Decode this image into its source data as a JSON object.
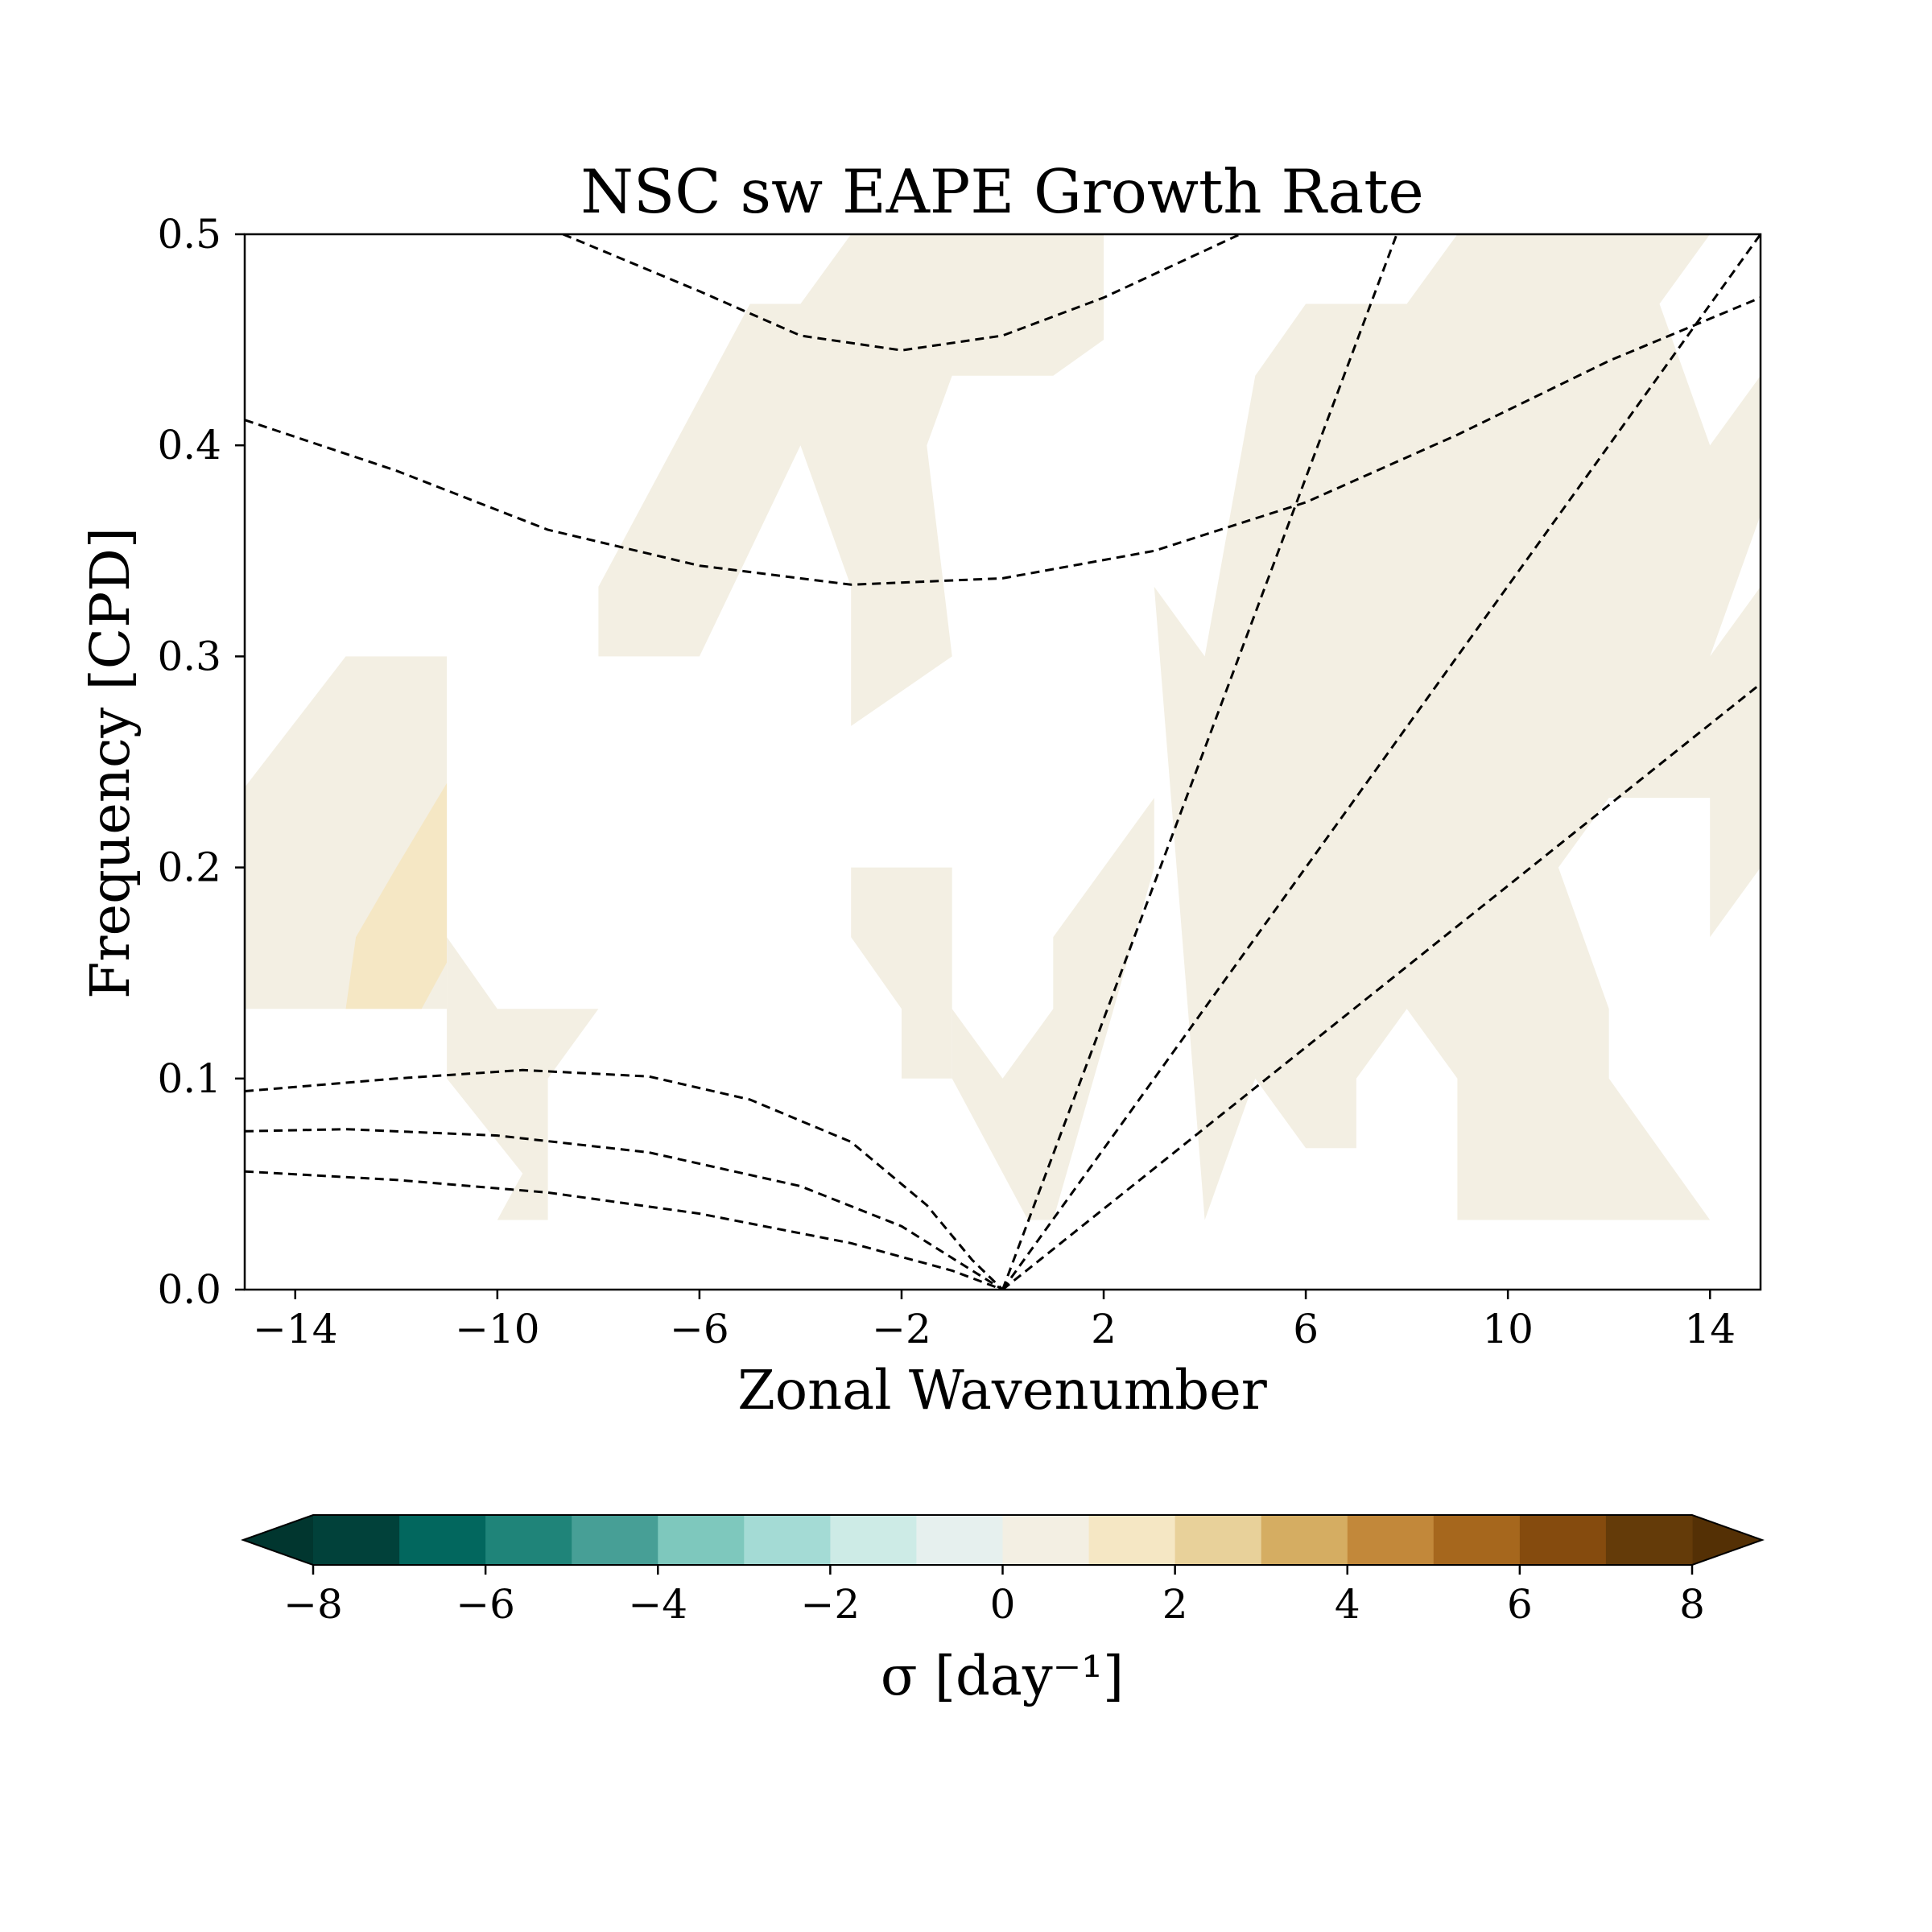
{
  "chart_data": {
    "type": "heatmap",
    "title": "NSC sw EAPE Growth Rate",
    "xlabel": "Zonal Wavenumber",
    "ylabel": "Frequency [CPD]",
    "xlim": [
      -15,
      15
    ],
    "ylim": [
      0,
      0.5
    ],
    "x_ticks": [
      "−14",
      "−10",
      "−6",
      "−2",
      "2",
      "6",
      "10",
      "14"
    ],
    "x_tick_values": [
      -14,
      -10,
      -6,
      -2,
      2,
      6,
      10,
      14
    ],
    "y_ticks": [
      "0.0",
      "0.1",
      "0.2",
      "0.3",
      "0.4",
      "0.5"
    ],
    "y_tick_values": [
      0,
      0.1,
      0.2,
      0.3,
      0.4,
      0.5
    ],
    "filled_contour_regions": [
      {
        "level": "0 to 1",
        "polygon": [
          [
            -15,
            0.133
          ],
          [
            -15,
            0.238
          ],
          [
            -13,
            0.3
          ],
          [
            -11,
            0.3
          ],
          [
            -11,
            0.133
          ]
        ]
      },
      {
        "level": "1 to 2",
        "polygon": [
          [
            -13,
            0.133
          ],
          [
            -12.8,
            0.167
          ],
          [
            -12,
            0.2
          ],
          [
            -11,
            0.24
          ],
          [
            -11,
            0.155
          ],
          [
            -11.5,
            0.133
          ]
        ]
      },
      {
        "level": "0 to 1",
        "polygon": [
          [
            -11,
            0.167
          ],
          [
            -10,
            0.133
          ],
          [
            -8,
            0.133
          ],
          [
            -9,
            0.1
          ],
          [
            -9,
            0.033
          ],
          [
            -10,
            0.033
          ],
          [
            -9.5,
            0.055
          ],
          [
            -11,
            0.1
          ]
        ]
      },
      {
        "level": "0 to 1",
        "polygon": [
          [
            -8,
            0.3
          ],
          [
            -8,
            0.333
          ],
          [
            -5,
            0.467
          ],
          [
            -4,
            0.467
          ],
          [
            -3,
            0.5
          ],
          [
            2,
            0.5
          ],
          [
            2,
            0.45
          ],
          [
            1,
            0.433
          ],
          [
            0,
            0.433
          ],
          [
            -1,
            0.433
          ],
          [
            -1.5,
            0.4
          ],
          [
            -1,
            0.3
          ],
          [
            -3,
            0.267
          ],
          [
            -3,
            0.333
          ],
          [
            -4,
            0.4
          ],
          [
            -6,
            0.3
          ]
        ]
      },
      {
        "level": "0 to 1",
        "polygon": [
          [
            -3,
            0.2
          ],
          [
            -3,
            0.167
          ],
          [
            -2,
            0.133
          ],
          [
            -2,
            0.1
          ],
          [
            -1,
            0.1
          ],
          [
            -1,
            0.2
          ]
        ]
      },
      {
        "level": "0 to 1",
        "polygon": [
          [
            -1,
            0.133
          ],
          [
            0,
            0.1
          ],
          [
            1,
            0.133
          ],
          [
            1,
            0.167
          ],
          [
            3,
            0.233
          ],
          [
            3,
            0.2
          ],
          [
            1,
            0.033
          ],
          [
            0.5,
            0.033
          ],
          [
            -1,
            0.1
          ]
        ]
      },
      {
        "level": "0 to 1",
        "polygon": [
          [
            4,
            0.033
          ],
          [
            3,
            0.333
          ],
          [
            4,
            0.3
          ],
          [
            5,
            0.433
          ],
          [
            6,
            0.467
          ],
          [
            8,
            0.467
          ],
          [
            9,
            0.5
          ],
          [
            14,
            0.5
          ],
          [
            13,
            0.467
          ],
          [
            14,
            0.4
          ],
          [
            15,
            0.433
          ],
          [
            15,
            0.367
          ],
          [
            14,
            0.3
          ],
          [
            15,
            0.333
          ],
          [
            15,
            0.2
          ],
          [
            14,
            0.167
          ],
          [
            14,
            0.233
          ],
          [
            13,
            0.233
          ],
          [
            12,
            0.233
          ],
          [
            11,
            0.2
          ],
          [
            12,
            0.133
          ],
          [
            12,
            0.1
          ],
          [
            14,
            0.033
          ],
          [
            9,
            0.033
          ],
          [
            9,
            0.1
          ],
          [
            8,
            0.133
          ],
          [
            7,
            0.1
          ],
          [
            7,
            0.067
          ],
          [
            6,
            0.067
          ],
          [
            5,
            0.1
          ]
        ]
      }
    ],
    "overlay_curves_dashed": [
      {
        "points": [
          [
            -8.7,
            0.5
          ],
          [
            -6,
            0.473
          ],
          [
            -4,
            0.452
          ],
          [
            -2,
            0.445
          ],
          [
            0,
            0.452
          ],
          [
            2,
            0.47
          ],
          [
            4.7,
            0.5
          ]
        ]
      },
      {
        "points": [
          [
            -15,
            0.412
          ],
          [
            -12,
            0.388
          ],
          [
            -9,
            0.36
          ],
          [
            -6,
            0.343
          ],
          [
            -3,
            0.334
          ],
          [
            0,
            0.337
          ],
          [
            3,
            0.35
          ],
          [
            6,
            0.373
          ],
          [
            9,
            0.405
          ],
          [
            12,
            0.44
          ],
          [
            15,
            0.47
          ]
        ]
      },
      {
        "points": [
          [
            -15,
            0.094
          ],
          [
            -12,
            0.1
          ],
          [
            -9.5,
            0.104
          ],
          [
            -7,
            0.101
          ],
          [
            -5,
            0.09
          ],
          [
            -3,
            0.07
          ],
          [
            -1.5,
            0.04
          ],
          [
            -0.6,
            0.014
          ],
          [
            0,
            0
          ]
        ]
      },
      {
        "points": [
          [
            -15,
            0.075
          ],
          [
            -13,
            0.076
          ],
          [
            -10,
            0.073
          ],
          [
            -7,
            0.065
          ],
          [
            -4,
            0.049
          ],
          [
            -2,
            0.03
          ],
          [
            -1,
            0.015
          ],
          [
            0,
            0
          ]
        ]
      },
      {
        "points": [
          [
            -15,
            0.056
          ],
          [
            -12,
            0.052
          ],
          [
            -9,
            0.046
          ],
          [
            -6,
            0.036
          ],
          [
            -3,
            0.022
          ],
          [
            -1,
            0.009
          ],
          [
            0,
            0
          ]
        ]
      },
      {
        "points": [
          [
            0,
            0
          ],
          [
            7.8,
            0.5
          ]
        ]
      },
      {
        "points": [
          [
            0,
            0
          ],
          [
            15,
            0.5
          ]
        ]
      },
      {
        "points": [
          [
            0,
            0
          ],
          [
            15,
            0.287
          ]
        ]
      }
    ],
    "colorbar": {
      "label": "σ [day⁻¹]",
      "levels": [
        -8,
        -7,
        -6,
        -5,
        -4,
        -3,
        -2,
        -1,
        0,
        1,
        2,
        3,
        4,
        5,
        6,
        7,
        8
      ],
      "ticks": [
        "−8",
        "−6",
        "−4",
        "−2",
        "0",
        "2",
        "4",
        "6",
        "8"
      ],
      "tick_values": [
        -8,
        -6,
        -4,
        -2,
        0,
        2,
        4,
        6,
        8
      ],
      "colors": [
        "#01413a",
        "#02675e",
        "#1f8479",
        "#479f96",
        "#7ec8bd",
        "#a4dbd5",
        "#cdebe6",
        "#e6f0ee",
        "#f3efe3",
        "#f5e7c4",
        "#e8d19a",
        "#d5ad62",
        "#c2883a",
        "#a6671d",
        "#854b0e",
        "#643b09"
      ],
      "under_color": "#01362f",
      "over_color": "#543005",
      "extend": "both"
    }
  }
}
